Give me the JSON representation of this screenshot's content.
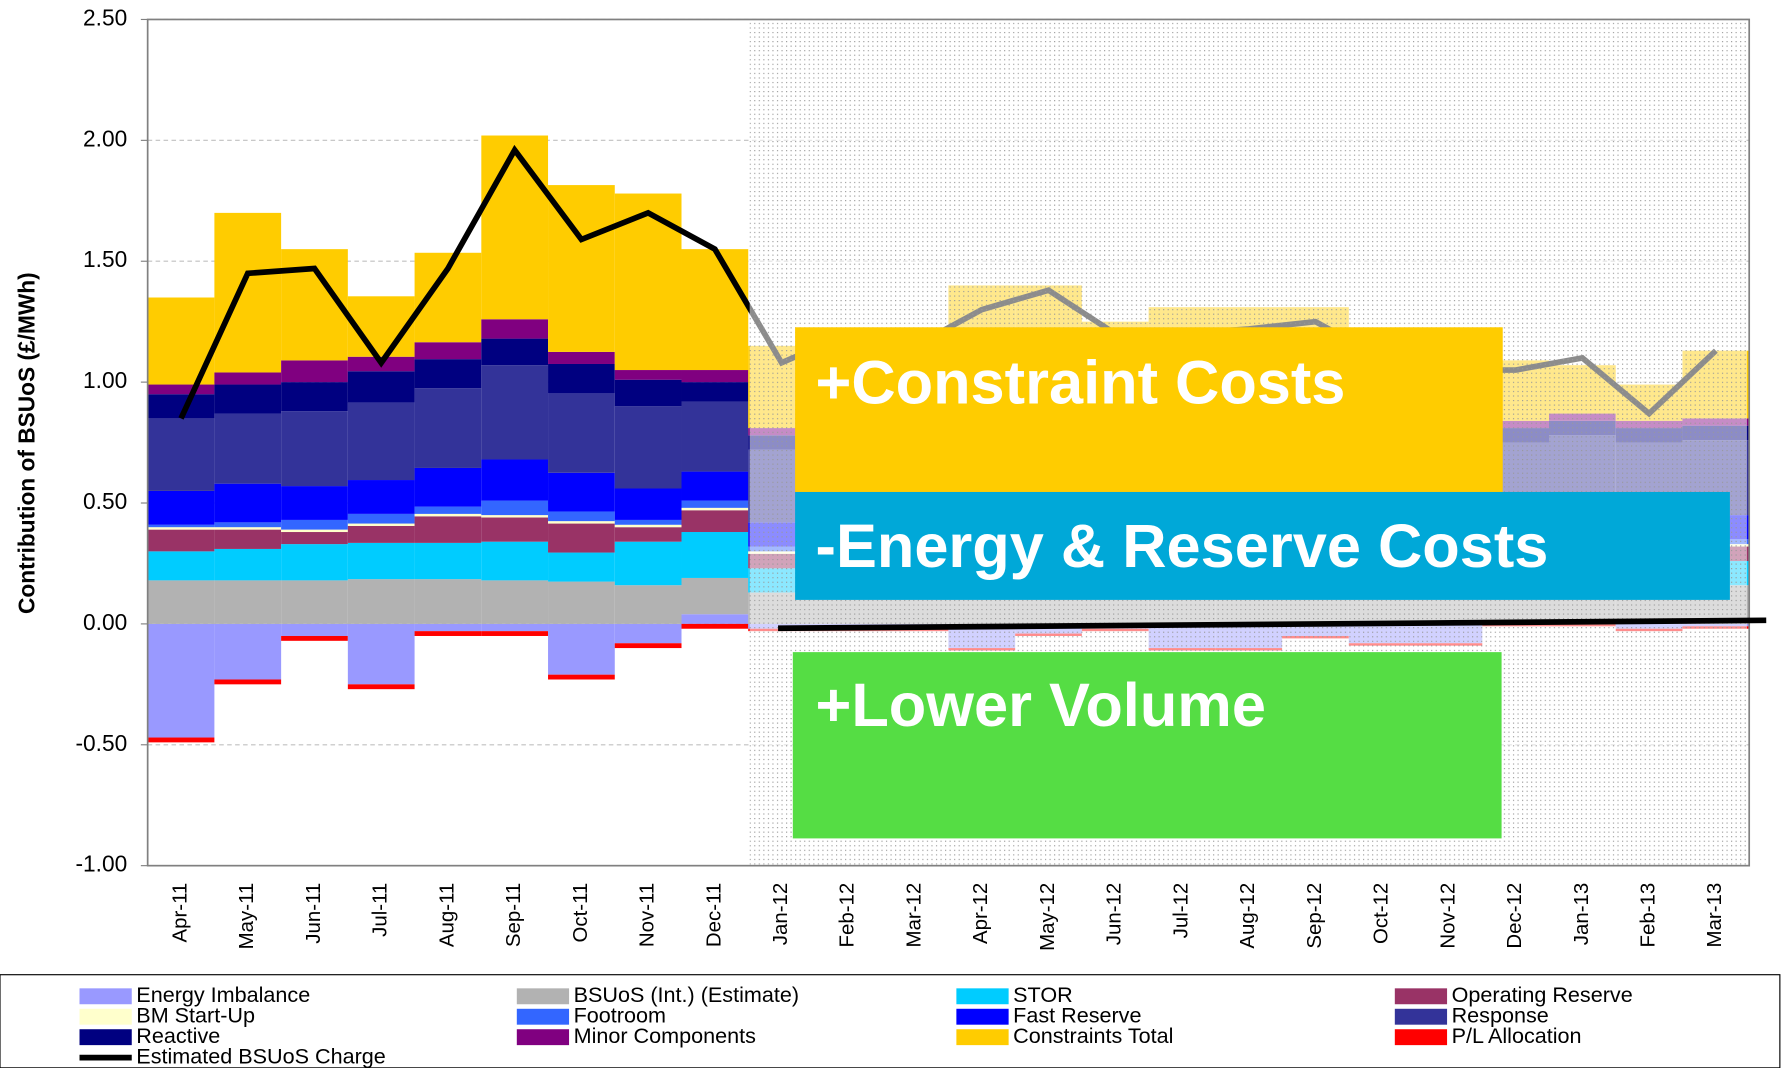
{
  "chart_data": {
    "type": "bar",
    "stacked": true,
    "ylabel": "Contribution of BSUoS (£/MWh)",
    "categories": [
      "Apr-11",
      "May-11",
      "Jun-11",
      "Jul-11",
      "Aug-11",
      "Sep-11",
      "Oct-11",
      "Nov-11",
      "Dec-11",
      "Jan-12",
      "Feb-12",
      "Mar-12",
      "Apr-12",
      "May-12",
      "Jun-12",
      "Jul-12",
      "Aug-12",
      "Sep-12",
      "Oct-12",
      "Nov-12",
      "Dec-12",
      "Jan-13",
      "Feb-13",
      "Mar-13"
    ],
    "ylim": [
      -1.0,
      2.5
    ],
    "yticks": [
      {
        "value": 2.5,
        "label": "2.50"
      },
      {
        "value": 2.0,
        "label": "2.00"
      },
      {
        "value": 1.5,
        "label": "1.50"
      },
      {
        "value": 1.0,
        "label": "1.00"
      },
      {
        "value": 0.5,
        "label": "0.50"
      },
      {
        "value": 0.0,
        "label": "0.00"
      },
      {
        "value": -0.5,
        "label": "-0.50"
      },
      {
        "value": -1.0,
        "label": "-1.00"
      }
    ],
    "grid": true,
    "series": [
      {
        "name": "Energy Imbalance",
        "color": "#9999ff",
        "values": [
          -0.47,
          -0.23,
          -0.05,
          -0.25,
          -0.03,
          -0.03,
          -0.21,
          -0.08,
          0.04,
          -0.02,
          -0.02,
          -0.02,
          -0.1,
          -0.04,
          -0.02,
          -0.1,
          -0.1,
          -0.05,
          -0.08,
          -0.08,
          0,
          0,
          -0.02,
          -0.01
        ]
      },
      {
        "name": "BSUoS (Int.) (Estimate)",
        "color": "#b2b2b2",
        "values": [
          0.18,
          0.18,
          0.18,
          0.185,
          0.185,
          0.18,
          0.175,
          0.16,
          0.15,
          0.13,
          0.13,
          0.13,
          0.15,
          0.15,
          0.15,
          0.16,
          0.16,
          0.16,
          0.16,
          0.16,
          0.16,
          0.16,
          0.16,
          0.16
        ]
      },
      {
        "name": "STOR",
        "color": "#00ccff",
        "values": [
          0.12,
          0.13,
          0.15,
          0.15,
          0.15,
          0.16,
          0.12,
          0.18,
          0.19,
          0.1,
          0.1,
          0.1,
          0.12,
          0.12,
          0.12,
          0.12,
          0.12,
          0.12,
          0.12,
          0.12,
          0.1,
          0.1,
          0.1,
          0.1
        ]
      },
      {
        "name": "Operating Reserve",
        "color": "#993366",
        "values": [
          0.09,
          0.08,
          0.05,
          0.07,
          0.11,
          0.1,
          0.12,
          0.06,
          0.09,
          0.06,
          0.06,
          0.06,
          0.06,
          0.06,
          0.06,
          0.06,
          0.06,
          0.06,
          0.06,
          0.06,
          0.06,
          0.06,
          0.06,
          0.06
        ]
      },
      {
        "name": "BM Start-Up",
        "color": "#ffffcc",
        "values": [
          0.01,
          0.01,
          0.01,
          0.01,
          0.01,
          0.01,
          0.01,
          0.01,
          0.01,
          0.01,
          0.01,
          0.01,
          0.01,
          0.01,
          0.01,
          0.01,
          0.01,
          0.01,
          0.01,
          0.01,
          0.01,
          0.01,
          0.01,
          0.01
        ]
      },
      {
        "name": "Footroom",
        "color": "#3366ff",
        "values": [
          0.01,
          0.02,
          0.04,
          0.04,
          0.03,
          0.06,
          0.04,
          0.02,
          0.03,
          0.02,
          0.02,
          0.02,
          0.02,
          0.02,
          0.02,
          0.02,
          0.02,
          0.02,
          0.02,
          0.02,
          0.02,
          0.02,
          0.02,
          0.02
        ]
      },
      {
        "name": "Fast Reserve",
        "color": "#0000ff",
        "values": [
          0.14,
          0.16,
          0.14,
          0.14,
          0.16,
          0.17,
          0.16,
          0.13,
          0.12,
          0.1,
          0.1,
          0.1,
          0.1,
          0.1,
          0.1,
          0.1,
          0.1,
          0.1,
          0.1,
          0.1,
          0.1,
          0.1,
          0.1,
          0.1
        ]
      },
      {
        "name": "Response",
        "color": "#333399",
        "values": [
          0.3,
          0.29,
          0.31,
          0.32,
          0.33,
          0.39,
          0.33,
          0.34,
          0.29,
          0.3,
          0.3,
          0.3,
          0.3,
          0.3,
          0.3,
          0.3,
          0.3,
          0.3,
          0.3,
          0.3,
          0.3,
          0.33,
          0.3,
          0.31
        ]
      },
      {
        "name": "Reactive",
        "color": "#000080",
        "values": [
          0.1,
          0.12,
          0.12,
          0.13,
          0.12,
          0.11,
          0.12,
          0.11,
          0.08,
          0.06,
          0.06,
          0.06,
          0.06,
          0.06,
          0.06,
          0.06,
          0.06,
          0.06,
          0.06,
          0.06,
          0.06,
          0.06,
          0.06,
          0.06
        ]
      },
      {
        "name": "Minor Components",
        "color": "#800080",
        "values": [
          0.04,
          0.05,
          0.09,
          0.06,
          0.07,
          0.08,
          0.05,
          0.04,
          0.05,
          0.03,
          0.03,
          0.03,
          0.03,
          0.03,
          0.03,
          0.03,
          0.03,
          0.03,
          0.03,
          0.03,
          0.03,
          0.03,
          0.03,
          0.03
        ]
      },
      {
        "name": "Constraints Total",
        "color": "#ffcc00",
        "values": [
          0.36,
          0.66,
          0.46,
          0.25,
          0.37,
          0.76,
          0.69,
          0.73,
          0.5,
          0.34,
          0.3,
          0.3,
          0.55,
          0.55,
          0.4,
          0.45,
          0.45,
          0.45,
          0.35,
          0.3,
          0.25,
          0.2,
          0.15,
          0.28
        ]
      },
      {
        "name": "P/L Allocation",
        "color": "#ff0000",
        "values": [
          -0.02,
          -0.02,
          -0.02,
          -0.02,
          -0.02,
          -0.02,
          -0.02,
          -0.02,
          -0.02,
          -0.01,
          -0.01,
          -0.01,
          -0.01,
          -0.01,
          -0.01,
          -0.01,
          -0.01,
          -0.01,
          -0.01,
          -0.01,
          -0.01,
          -0.01,
          -0.01,
          -0.01
        ]
      },
      {
        "name": "Estimated BSUoS Charge",
        "color": "#000000",
        "type": "line",
        "values": [
          0.85,
          1.45,
          1.47,
          1.08,
          1.47,
          1.96,
          1.59,
          1.7,
          1.55,
          1.08,
          1.2,
          1.15,
          1.3,
          1.38,
          1.2,
          1.2,
          1.22,
          1.25,
          1.1,
          1.05,
          1.05,
          1.1,
          0.87,
          1.13
        ]
      }
    ],
    "annotations": [
      "+Constraint Costs",
      "-Energy & Reserve Costs",
      "+Lower Volume"
    ]
  }
}
